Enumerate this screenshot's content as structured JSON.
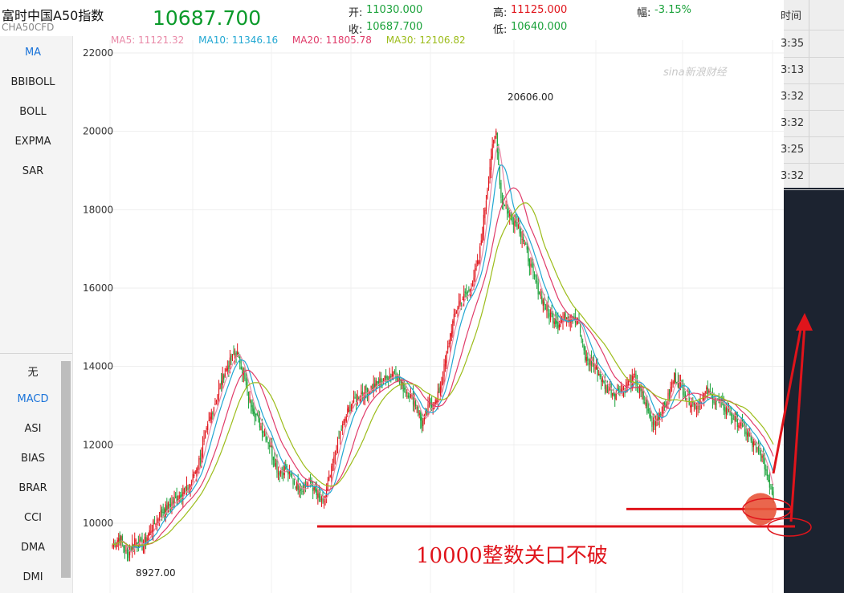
{
  "header": {
    "title": "富时中国A50指数",
    "code": "CHA50CFD",
    "price": "10687.700",
    "open_label": "开:",
    "open_value": "11030.000",
    "close_label": "收:",
    "close_value": "10687.700",
    "high_label": "高:",
    "high_value": "11125.000",
    "low_label": "低:",
    "low_value": "10640.000",
    "change_label": "幅:",
    "change_value": "-3.15%"
  },
  "ma_legend": [
    {
      "label": "MA5: 11121.32",
      "color": "#e98aa8"
    },
    {
      "label": "MA10: 11346.16",
      "color": "#21a7d2"
    },
    {
      "label": "MA20: 11805.78",
      "color": "#e03c6a"
    },
    {
      "label": "MA30: 12106.82",
      "color": "#9cbc1a"
    }
  ],
  "sidebar_top": [
    "MA",
    "BBIBOLL",
    "BOLL",
    "EXPMA",
    "SAR"
  ],
  "sidebar_bottom": [
    "无",
    "MACD",
    "ASI",
    "BIAS",
    "BRAR",
    "CCI",
    "DMA",
    "DMI"
  ],
  "right_panel": {
    "header": "时间",
    "times": [
      "3:35",
      "3:13",
      "3:32",
      "3:32",
      "3:25",
      "3:32"
    ]
  },
  "watermark": "sina新浪财经",
  "annotation": "10000整数关口不破",
  "chart_data": {
    "type": "candlestick",
    "yticks": [
      10000,
      12000,
      14000,
      16000,
      18000,
      20000,
      22000
    ],
    "ylim": [
      8500,
      22300
    ],
    "high_label": "20606.00",
    "low_label": "8927.00",
    "path": [
      [
        0,
        9450
      ],
      [
        6,
        9650
      ],
      [
        12,
        9150
      ],
      [
        18,
        9600
      ],
      [
        24,
        9400
      ],
      [
        32,
        9900
      ],
      [
        40,
        10300
      ],
      [
        48,
        10500
      ],
      [
        56,
        10800
      ],
      [
        62,
        10900
      ],
      [
        70,
        11600
      ],
      [
        80,
        12800
      ],
      [
        90,
        13800
      ],
      [
        100,
        14400
      ],
      [
        104,
        14050
      ],
      [
        110,
        13200
      ],
      [
        118,
        12600
      ],
      [
        126,
        12100
      ],
      [
        134,
        11300
      ],
      [
        140,
        11400
      ],
      [
        146,
        11050
      ],
      [
        152,
        10900
      ],
      [
        160,
        11050
      ],
      [
        166,
        10650
      ],
      [
        170,
        10450
      ],
      [
        176,
        11200
      ],
      [
        184,
        12300
      ],
      [
        192,
        13000
      ],
      [
        200,
        13300
      ],
      [
        208,
        13450
      ],
      [
        216,
        13600
      ],
      [
        222,
        13700
      ],
      [
        228,
        13900
      ],
      [
        234,
        13500
      ],
      [
        240,
        13300
      ],
      [
        246,
        13000
      ],
      [
        250,
        12500
      ],
      [
        256,
        13000
      ],
      [
        262,
        13100
      ],
      [
        268,
        13950
      ],
      [
        274,
        15000
      ],
      [
        280,
        15650
      ],
      [
        288,
        15900
      ],
      [
        296,
        16700
      ],
      [
        302,
        18300
      ],
      [
        306,
        19400
      ],
      [
        310,
        20000
      ],
      [
        314,
        18300
      ],
      [
        320,
        17900
      ],
      [
        328,
        17600
      ],
      [
        334,
        17000
      ],
      [
        340,
        16300
      ],
      [
        346,
        15800
      ],
      [
        352,
        15400
      ],
      [
        360,
        15100
      ],
      [
        368,
        15300
      ],
      [
        376,
        15200
      ],
      [
        382,
        14200
      ],
      [
        390,
        14000
      ],
      [
        398,
        13500
      ],
      [
        406,
        13300
      ],
      [
        414,
        13500
      ],
      [
        422,
        13700
      ],
      [
        430,
        13100
      ],
      [
        436,
        12500
      ],
      [
        442,
        12800
      ],
      [
        448,
        13100
      ],
      [
        454,
        13750
      ],
      [
        460,
        13450
      ],
      [
        466,
        13150
      ],
      [
        472,
        13000
      ],
      [
        480,
        13350
      ],
      [
        488,
        13100
      ],
      [
        496,
        12900
      ],
      [
        502,
        12700
      ],
      [
        510,
        12400
      ],
      [
        516,
        12100
      ],
      [
        522,
        11800
      ],
      [
        526,
        11600
      ],
      [
        530,
        11100
      ],
      [
        534,
        10700
      ]
    ],
    "ma_offsets": [
      {
        "name": "MA5",
        "lag": 3
      },
      {
        "name": "MA10",
        "lag": 6
      },
      {
        "name": "MA20",
        "lag": 12
      },
      {
        "name": "MA30",
        "lag": 18
      }
    ],
    "support_level": 10000,
    "current_level": 10687.7
  },
  "colors": {
    "up": "#e0141b",
    "down": "#1ba23b",
    "support_line": "#e0141b",
    "annotation": "#e0141b"
  }
}
